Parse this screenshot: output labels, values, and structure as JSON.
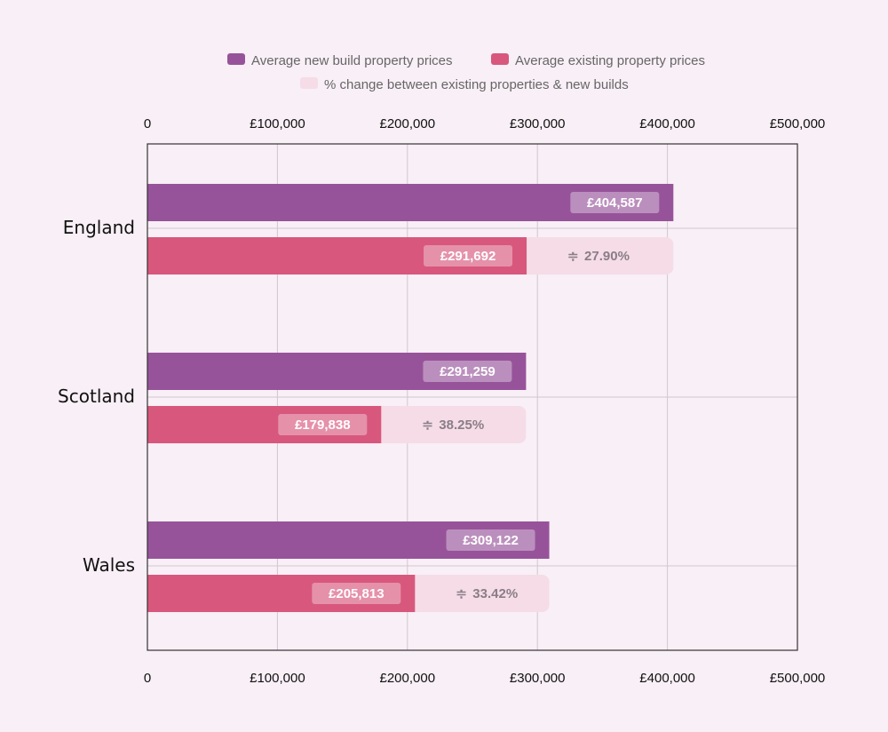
{
  "chart_data": {
    "type": "bar",
    "orientation": "horizontal",
    "categories": [
      "England",
      "Scotland",
      "Wales"
    ],
    "series": [
      {
        "name": "Average new build property prices",
        "color": "#97539a",
        "values": [
          404587,
          291259,
          309122
        ],
        "labels": [
          "£404,587",
          "£291,259",
          "£309,122"
        ]
      },
      {
        "name": "Average existing property prices",
        "color": "#d8577d",
        "values": [
          291692,
          179838,
          205813
        ],
        "labels": [
          "£291,692",
          "£179,838",
          "£205,813"
        ]
      },
      {
        "name": "% change between existing properties & new builds",
        "color": "#f5dce7",
        "values": [
          27.9,
          38.25,
          33.42
        ],
        "labels": [
          "27.90%",
          "38.25%",
          "33.42%"
        ]
      }
    ],
    "xlim": [
      0,
      500000
    ],
    "x_ticks": [
      0,
      100000,
      200000,
      300000,
      400000,
      500000
    ],
    "x_tick_labels": [
      "0",
      "£100,000",
      "£200,000",
      "£300,000",
      "£400,000",
      "£500,000"
    ],
    "axis_position": "top and bottom",
    "grid": true,
    "legend_position": "top",
    "pct_icon": "≑"
  }
}
